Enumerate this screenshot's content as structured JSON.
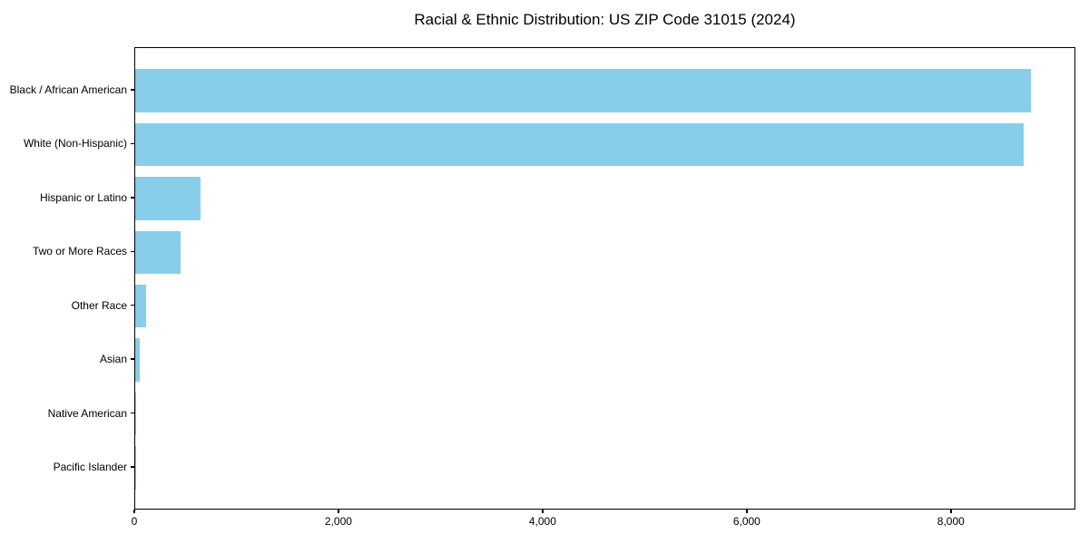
{
  "chart_data": {
    "type": "bar",
    "orientation": "horizontal",
    "title": "Racial & Ethnic Distribution: US ZIP Code 31015 (2024)",
    "categories": [
      "Black / African American",
      "White (Non-Hispanic)",
      "Hispanic or Latino",
      "Two or More Races",
      "Other Race",
      "Asian",
      "Native American",
      "Pacific Islander"
    ],
    "values": [
      8790,
      8720,
      640,
      445,
      110,
      45,
      8,
      2
    ],
    "xlabel": "",
    "ylabel": "",
    "xlim": [
      0,
      9220
    ],
    "x_ticks": [
      0,
      2000,
      4000,
      6000,
      8000
    ],
    "x_tick_labels": [
      "0",
      "2,000",
      "4,000",
      "6,000",
      "8,000"
    ],
    "grid": false,
    "legend": null,
    "bar_color": "#87CEEB"
  },
  "colors": {
    "bar": "#87CEEB",
    "axis": "#000000",
    "text": "#000000",
    "background": "#ffffff"
  }
}
